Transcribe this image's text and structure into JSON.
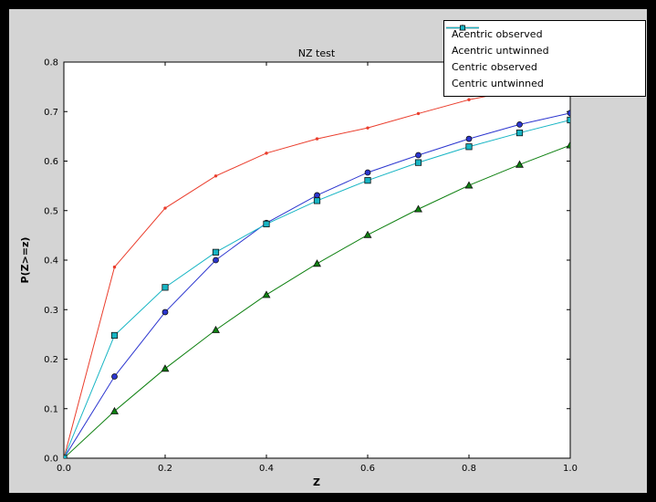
{
  "chart_data": {
    "type": "line",
    "title": "NZ test",
    "xlabel": "Z",
    "ylabel": "P(Z>=z)",
    "xlim": [
      0.0,
      1.0
    ],
    "ylim": [
      0.0,
      0.8
    ],
    "grid": false,
    "legend_position": "upper right",
    "xtick_values": [
      0.0,
      0.2,
      0.4,
      0.6,
      0.8,
      1.0
    ],
    "xtick_labels": [
      "0.0",
      "0.2",
      "0.4",
      "0.6",
      "0.8",
      "1.0"
    ],
    "ytick_values": [
      0.0,
      0.1,
      0.2,
      0.3,
      0.4,
      0.5,
      0.6,
      0.7,
      0.8
    ],
    "ytick_labels": [
      "0.0",
      "0.1",
      "0.2",
      "0.3",
      "0.4",
      "0.5",
      "0.6",
      "0.7",
      "0.8"
    ],
    "x": [
      0.0,
      0.1,
      0.2,
      0.3,
      0.4,
      0.5,
      0.6,
      0.7,
      0.8,
      0.9,
      1.0
    ],
    "series": [
      {
        "name": "Acentric observed",
        "color": "#2b35cf",
        "marker": "circle",
        "values": [
          0.0,
          0.165,
          0.295,
          0.4,
          0.475,
          0.531,
          0.577,
          0.612,
          0.645,
          0.674,
          0.697
        ]
      },
      {
        "name": "Acentric untwinned",
        "color": "#0e8010",
        "marker": "triangle",
        "values": [
          0.0,
          0.095,
          0.181,
          0.259,
          0.33,
          0.393,
          0.451,
          0.503,
          0.551,
          0.593,
          0.632
        ]
      },
      {
        "name": "Centric observed",
        "color": "#ea3d2c",
        "marker": "dot",
        "values": [
          0.0,
          0.386,
          0.505,
          0.57,
          0.616,
          0.645,
          0.667,
          0.696,
          0.724,
          0.744,
          0.758
        ]
      },
      {
        "name": "Centric untwinned",
        "color": "#17b5c4",
        "marker": "square",
        "values": [
          0.0,
          0.248,
          0.345,
          0.416,
          0.473,
          0.52,
          0.561,
          0.597,
          0.629,
          0.657,
          0.683
        ]
      }
    ]
  }
}
